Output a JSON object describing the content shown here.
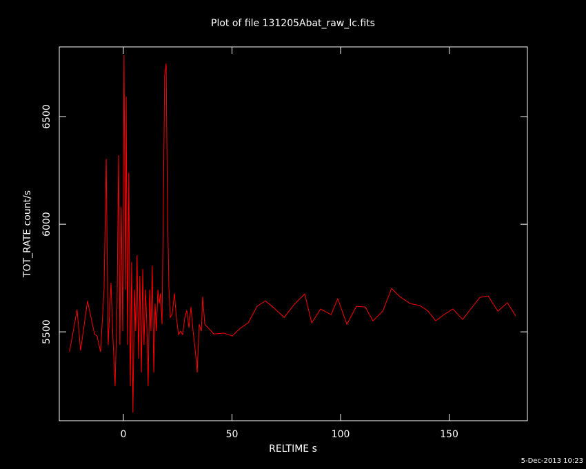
{
  "chart_data": {
    "type": "line",
    "title": "Plot of file 131205Abat_raw_lc.fits",
    "x_label": "RELTIME  s",
    "y_label": "TOT_RATE  count/s",
    "date": "5-Dec-2013 10:23",
    "xlim": [
      -29.5,
      186
    ],
    "ylim": [
      5087,
      6824
    ],
    "xticks": [
      0,
      50,
      100,
      150
    ],
    "yticks": [
      5500,
      6000,
      6500
    ],
    "x": [
      -24.8,
      -22.5,
      -21.3,
      -19.7,
      -16.5,
      -13.3,
      -12.1,
      -10.5,
      -8.9,
      -7.9,
      -7.0,
      -5.7,
      -4.8,
      -3.8,
      -2.9,
      -2.2,
      -1.6,
      -1,
      -0.3,
      0.3,
      1,
      1.3,
      1.9,
      2.5,
      3.2,
      3.8,
      4.4,
      5.1,
      5.7,
      6.3,
      7,
      7.6,
      8.3,
      8.9,
      9.5,
      10.2,
      10.8,
      11.4,
      12.1,
      12.7,
      13.3,
      14,
      14.6,
      15.2,
      15.9,
      16.5,
      17.1,
      17.8,
      18.4,
      19,
      19.7,
      20.3,
      21,
      21.6,
      22.5,
      23.5,
      24.4,
      25.4,
      26.3,
      27.3,
      28.3,
      29.2,
      30.2,
      31.1,
      32.1,
      33,
      34,
      34.9,
      35.9,
      36.5,
      37.5,
      41.6,
      46.3,
      50.2,
      53.7,
      57.5,
      61.6,
      65.4,
      69.2,
      74,
      78.7,
      83.5,
      86.7,
      90.8,
      95.6,
      98.7,
      102.9,
      107.3,
      111.4,
      114.9,
      119.4,
      123.5,
      127.3,
      132.1,
      136.5,
      140,
      143.8,
      148,
      151.7,
      156.2,
      160.6,
      164.1,
      167.9,
      172.4,
      176.8,
      180.6
    ],
    "series": [
      {
        "name": "TOT_RATE",
        "color": "#ff0000",
        "values": [
          5407,
          5535,
          5603,
          5413,
          5644,
          5490,
          5481,
          5407,
          5696,
          6304,
          5439,
          5728,
          5471,
          5247,
          5631,
          6320,
          5439,
          6080,
          5503,
          6785,
          5696,
          6593,
          5439,
          6240,
          5247,
          5824,
          5125,
          5696,
          5503,
          5856,
          5375,
          5760,
          5311,
          5792,
          5439,
          5696,
          5535,
          5247,
          5696,
          5503,
          5808,
          5311,
          5631,
          5503,
          5696,
          5631,
          5679,
          5535,
          6080,
          6689,
          6747,
          6080,
          5696,
          5567,
          5583,
          5679,
          5567,
          5487,
          5503,
          5487,
          5567,
          5599,
          5519,
          5615,
          5503,
          5423,
          5311,
          5535,
          5503,
          5663,
          5535,
          5490,
          5494,
          5481,
          5516,
          5542,
          5619,
          5644,
          5612,
          5567,
          5628,
          5676,
          5542,
          5606,
          5580,
          5654,
          5535,
          5619,
          5615,
          5551,
          5596,
          5702,
          5663,
          5631,
          5622,
          5599,
          5551,
          5583,
          5606,
          5558,
          5615,
          5660,
          5667,
          5596,
          5635,
          5574
        ]
      }
    ]
  }
}
